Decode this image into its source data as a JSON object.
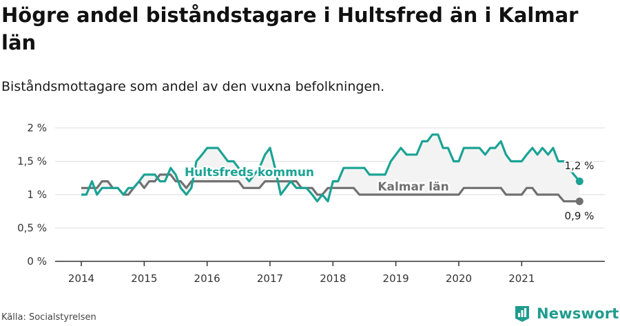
{
  "header": {
    "title": "Högre andel biståndstagare i Hultsfred än i Kalmar län",
    "subtitle": "Biståndsmottagare som andel av den vuxna befolkningen."
  },
  "footer": {
    "source": "Källa: Socialstyrelsen",
    "brand": "Newsworthy"
  },
  "colors": {
    "hultsfred": "#1aa394",
    "kalmar": "#707070",
    "band": "#f3f3f3",
    "grid": "#dddddd",
    "axis": "#333333"
  },
  "chart_data": {
    "type": "line",
    "title": "Högre andel biståndstagare i Hultsfred än i Kalmar län",
    "subtitle": "Biståndsmottagare som andel av den vuxna befolkningen.",
    "xlabel": "",
    "ylabel": "",
    "x_range": [
      2014.0,
      2021.9167
    ],
    "ylim": [
      0,
      2
    ],
    "y_ticks": [
      {
        "value": 0,
        "label": "0 %"
      },
      {
        "value": 0.5,
        "label": "0,5 %"
      },
      {
        "value": 1,
        "label": "1 %"
      },
      {
        "value": 1.5,
        "label": "1,5 %"
      },
      {
        "value": 2,
        "label": "2 %"
      }
    ],
    "x_ticks": [
      {
        "value": 2014,
        "label": "2014"
      },
      {
        "value": 2015,
        "label": "2015"
      },
      {
        "value": 2016,
        "label": "2016"
      },
      {
        "value": 2017,
        "label": "2017"
      },
      {
        "value": 2018,
        "label": "2018"
      },
      {
        "value": 2019,
        "label": "2019"
      },
      {
        "value": 2020,
        "label": "2020"
      },
      {
        "value": 2021,
        "label": "2021"
      }
    ],
    "grid": true,
    "legend": "direct labels on lines",
    "series": [
      {
        "name": "Hultsfreds kommun",
        "end_label": "1,2 %",
        "points": [
          [
            2014.0,
            1.0
          ],
          [
            2014.08,
            1.0
          ],
          [
            2014.17,
            1.2
          ],
          [
            2014.25,
            1.0
          ],
          [
            2014.33,
            1.1
          ],
          [
            2014.42,
            1.1
          ],
          [
            2014.5,
            1.1
          ],
          [
            2014.58,
            1.1
          ],
          [
            2014.67,
            1.0
          ],
          [
            2014.75,
            1.1
          ],
          [
            2014.83,
            1.1
          ],
          [
            2014.92,
            1.2
          ],
          [
            2015.0,
            1.3
          ],
          [
            2015.08,
            1.3
          ],
          [
            2015.17,
            1.3
          ],
          [
            2015.25,
            1.2
          ],
          [
            2015.33,
            1.2
          ],
          [
            2015.42,
            1.4
          ],
          [
            2015.5,
            1.3
          ],
          [
            2015.58,
            1.1
          ],
          [
            2015.67,
            1.0
          ],
          [
            2015.75,
            1.1
          ],
          [
            2015.83,
            1.5
          ],
          [
            2015.92,
            1.6
          ],
          [
            2016.0,
            1.7
          ],
          [
            2016.08,
            1.7
          ],
          [
            2016.17,
            1.7
          ],
          [
            2016.25,
            1.6
          ],
          [
            2016.33,
            1.5
          ],
          [
            2016.42,
            1.5
          ],
          [
            2016.5,
            1.4
          ],
          [
            2016.58,
            1.3
          ],
          [
            2016.67,
            1.2
          ],
          [
            2016.75,
            1.3
          ],
          [
            2016.83,
            1.4
          ],
          [
            2016.92,
            1.6
          ],
          [
            2017.0,
            1.7
          ],
          [
            2017.08,
            1.4
          ],
          [
            2017.17,
            1.0
          ],
          [
            2017.25,
            1.1
          ],
          [
            2017.33,
            1.2
          ],
          [
            2017.42,
            1.1
          ],
          [
            2017.5,
            1.1
          ],
          [
            2017.58,
            1.1
          ],
          [
            2017.67,
            1.0
          ],
          [
            2017.75,
            0.9
          ],
          [
            2017.83,
            1.0
          ],
          [
            2017.92,
            0.9
          ],
          [
            2018.0,
            1.2
          ],
          [
            2018.08,
            1.2
          ],
          [
            2018.17,
            1.4
          ],
          [
            2018.25,
            1.4
          ],
          [
            2018.33,
            1.4
          ],
          [
            2018.42,
            1.4
          ],
          [
            2018.5,
            1.4
          ],
          [
            2018.58,
            1.3
          ],
          [
            2018.67,
            1.3
          ],
          [
            2018.75,
            1.3
          ],
          [
            2018.83,
            1.3
          ],
          [
            2018.92,
            1.5
          ],
          [
            2019.0,
            1.6
          ],
          [
            2019.08,
            1.7
          ],
          [
            2019.17,
            1.6
          ],
          [
            2019.25,
            1.6
          ],
          [
            2019.33,
            1.6
          ],
          [
            2019.42,
            1.8
          ],
          [
            2019.5,
            1.8
          ],
          [
            2019.58,
            1.9
          ],
          [
            2019.67,
            1.9
          ],
          [
            2019.75,
            1.7
          ],
          [
            2019.83,
            1.7
          ],
          [
            2019.92,
            1.5
          ],
          [
            2020.0,
            1.5
          ],
          [
            2020.08,
            1.7
          ],
          [
            2020.17,
            1.7
          ],
          [
            2020.25,
            1.7
          ],
          [
            2020.33,
            1.7
          ],
          [
            2020.42,
            1.6
          ],
          [
            2020.5,
            1.7
          ],
          [
            2020.58,
            1.7
          ],
          [
            2020.67,
            1.8
          ],
          [
            2020.75,
            1.6
          ],
          [
            2020.83,
            1.5
          ],
          [
            2020.92,
            1.5
          ],
          [
            2021.0,
            1.5
          ],
          [
            2021.08,
            1.6
          ],
          [
            2021.17,
            1.7
          ],
          [
            2021.25,
            1.6
          ],
          [
            2021.33,
            1.7
          ],
          [
            2021.42,
            1.6
          ],
          [
            2021.5,
            1.7
          ],
          [
            2021.58,
            1.5
          ],
          [
            2021.67,
            1.5
          ],
          [
            2021.75,
            1.4
          ],
          [
            2021.83,
            1.3
          ],
          [
            2021.92,
            1.2
          ]
        ]
      },
      {
        "name": "Kalmar län",
        "end_label": "0,9 %",
        "points": [
          [
            2014.0,
            1.1
          ],
          [
            2014.08,
            1.1
          ],
          [
            2014.17,
            1.1
          ],
          [
            2014.25,
            1.1
          ],
          [
            2014.33,
            1.2
          ],
          [
            2014.42,
            1.2
          ],
          [
            2014.5,
            1.1
          ],
          [
            2014.58,
            1.1
          ],
          [
            2014.67,
            1.0
          ],
          [
            2014.75,
            1.0
          ],
          [
            2014.83,
            1.1
          ],
          [
            2014.92,
            1.2
          ],
          [
            2015.0,
            1.1
          ],
          [
            2015.08,
            1.2
          ],
          [
            2015.17,
            1.2
          ],
          [
            2015.25,
            1.3
          ],
          [
            2015.33,
            1.3
          ],
          [
            2015.42,
            1.3
          ],
          [
            2015.5,
            1.2
          ],
          [
            2015.58,
            1.2
          ],
          [
            2015.67,
            1.1
          ],
          [
            2015.75,
            1.2
          ],
          [
            2015.83,
            1.2
          ],
          [
            2015.92,
            1.2
          ],
          [
            2016.0,
            1.2
          ],
          [
            2016.08,
            1.2
          ],
          [
            2016.17,
            1.2
          ],
          [
            2016.25,
            1.2
          ],
          [
            2016.33,
            1.2
          ],
          [
            2016.42,
            1.2
          ],
          [
            2016.5,
            1.2
          ],
          [
            2016.58,
            1.1
          ],
          [
            2016.67,
            1.1
          ],
          [
            2016.75,
            1.1
          ],
          [
            2016.83,
            1.1
          ],
          [
            2016.92,
            1.2
          ],
          [
            2017.0,
            1.2
          ],
          [
            2017.08,
            1.2
          ],
          [
            2017.17,
            1.2
          ],
          [
            2017.25,
            1.2
          ],
          [
            2017.33,
            1.2
          ],
          [
            2017.42,
            1.2
          ],
          [
            2017.5,
            1.1
          ],
          [
            2017.58,
            1.1
          ],
          [
            2017.67,
            1.1
          ],
          [
            2017.75,
            1.0
          ],
          [
            2017.83,
            1.0
          ],
          [
            2017.92,
            1.1
          ],
          [
            2018.0,
            1.1
          ],
          [
            2018.08,
            1.1
          ],
          [
            2018.17,
            1.1
          ],
          [
            2018.25,
            1.1
          ],
          [
            2018.33,
            1.1
          ],
          [
            2018.42,
            1.0
          ],
          [
            2018.5,
            1.0
          ],
          [
            2018.58,
            1.0
          ],
          [
            2018.67,
            1.0
          ],
          [
            2018.75,
            1.0
          ],
          [
            2018.83,
            1.0
          ],
          [
            2018.92,
            1.0
          ],
          [
            2019.0,
            1.0
          ],
          [
            2019.08,
            1.0
          ],
          [
            2019.17,
            1.0
          ],
          [
            2019.25,
            1.0
          ],
          [
            2019.33,
            1.0
          ],
          [
            2019.42,
            1.0
          ],
          [
            2019.5,
            1.0
          ],
          [
            2019.58,
            1.0
          ],
          [
            2019.67,
            1.0
          ],
          [
            2019.75,
            1.0
          ],
          [
            2019.83,
            1.0
          ],
          [
            2019.92,
            1.0
          ],
          [
            2020.0,
            1.0
          ],
          [
            2020.08,
            1.1
          ],
          [
            2020.17,
            1.1
          ],
          [
            2020.25,
            1.1
          ],
          [
            2020.33,
            1.1
          ],
          [
            2020.42,
            1.1
          ],
          [
            2020.5,
            1.1
          ],
          [
            2020.58,
            1.1
          ],
          [
            2020.67,
            1.1
          ],
          [
            2020.75,
            1.0
          ],
          [
            2020.83,
            1.0
          ],
          [
            2020.92,
            1.0
          ],
          [
            2021.0,
            1.0
          ],
          [
            2021.08,
            1.1
          ],
          [
            2021.17,
            1.1
          ],
          [
            2021.25,
            1.0
          ],
          [
            2021.33,
            1.0
          ],
          [
            2021.42,
            1.0
          ],
          [
            2021.5,
            1.0
          ],
          [
            2021.58,
            1.0
          ],
          [
            2021.67,
            0.9
          ],
          [
            2021.75,
            0.9
          ],
          [
            2021.83,
            0.9
          ],
          [
            2021.92,
            0.9
          ]
        ]
      }
    ]
  }
}
